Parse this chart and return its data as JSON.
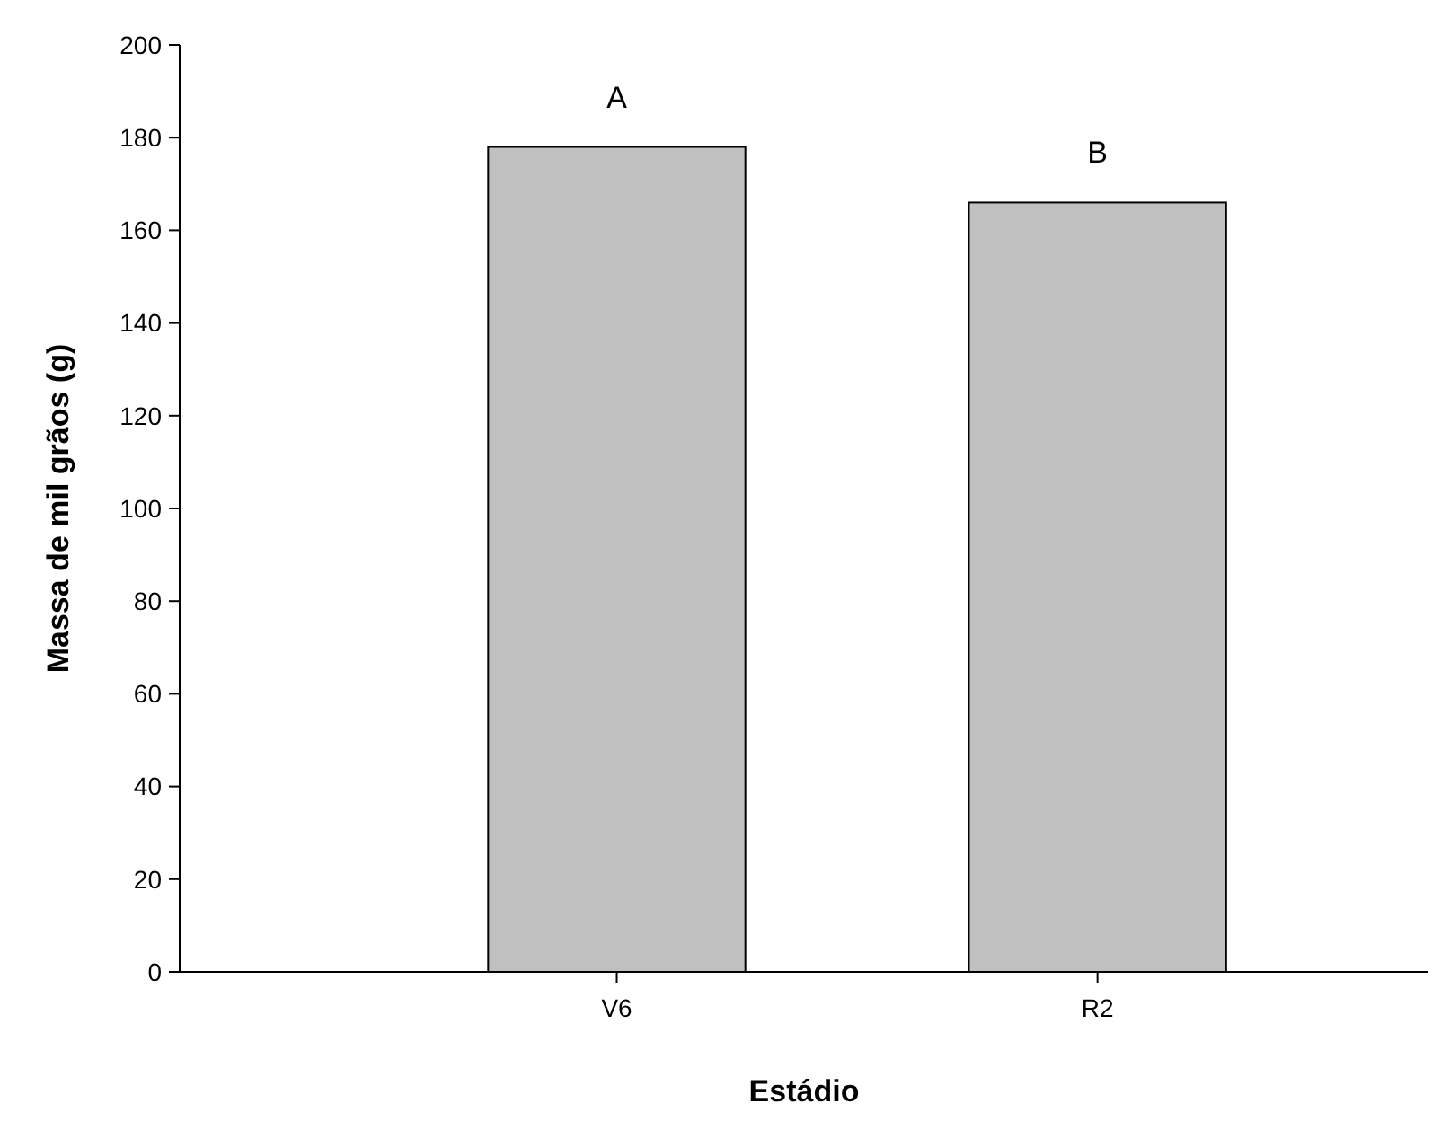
{
  "chart_data": {
    "type": "bar",
    "xlabel": "Estádio",
    "ylabel": "Massa de mil grãos (g)",
    "categories": [
      "V6",
      "R2"
    ],
    "values": [
      178,
      166
    ],
    "color": "#c0c0c0",
    "ylim": [
      0,
      200
    ],
    "yticks": [
      0,
      20,
      40,
      60,
      80,
      100,
      120,
      140,
      160,
      180,
      200
    ],
    "grid": false,
    "annotations": [
      "A",
      "B"
    ]
  }
}
